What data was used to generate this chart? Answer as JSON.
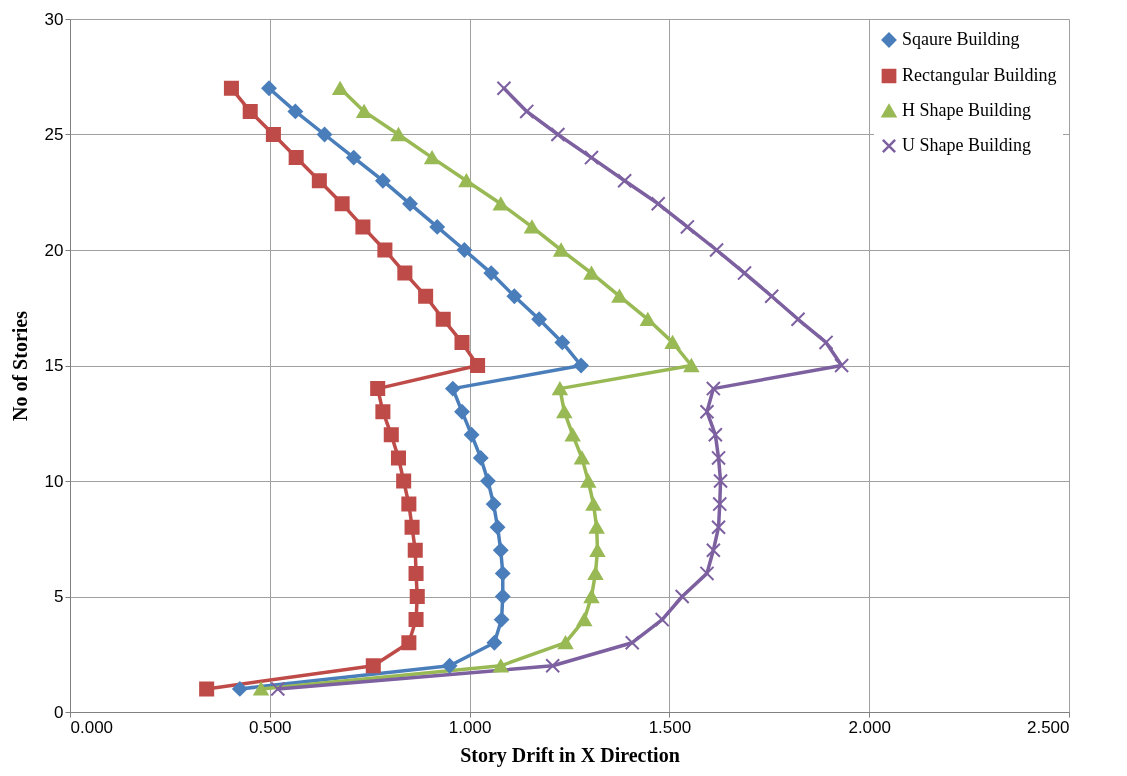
{
  "chart_data": {
    "type": "line",
    "xlabel": "Story Drift in X Direction",
    "ylabel": "No of Stories",
    "xlim": [
      0,
      2.5
    ],
    "xticks": [
      {
        "value": 0,
        "label": "0.000"
      },
      {
        "value": 0.5,
        "label": "0.500"
      },
      {
        "value": 1,
        "label": "1.000"
      },
      {
        "value": 1.5,
        "label": "1.500"
      },
      {
        "value": 2,
        "label": "2.000"
      },
      {
        "value": 2.5,
        "label": "2.500"
      }
    ],
    "ylim": [
      0,
      30
    ],
    "yticks": [
      0,
      5,
      10,
      15,
      20,
      25,
      30
    ],
    "grid": true,
    "legend": "top right",
    "line_style": "solid",
    "series": [
      {
        "name": "Sqaure Building",
        "color": "#4a7ebb",
        "marker": "diamond",
        "x": [
          0.425,
          0.95,
          1.062,
          1.08,
          1.083,
          1.083,
          1.078,
          1.07,
          1.06,
          1.046,
          1.028,
          1.005,
          0.981,
          0.958,
          1.279,
          1.232,
          1.174,
          1.112,
          1.054,
          0.987,
          0.919,
          0.851,
          0.783,
          0.71,
          0.637,
          0.564,
          0.498
        ],
        "values": [
          1,
          2,
          3,
          4,
          5,
          6,
          7,
          8,
          9,
          10,
          11,
          12,
          13,
          14,
          15,
          16,
          17,
          18,
          19,
          20,
          21,
          22,
          23,
          24,
          25,
          26,
          27
        ]
      },
      {
        "name": "Rectangular Building",
        "color": "#be4b48",
        "marker": "square",
        "x": [
          0.342,
          0.759,
          0.848,
          0.866,
          0.869,
          0.866,
          0.864,
          0.856,
          0.848,
          0.835,
          0.822,
          0.804,
          0.783,
          0.77,
          1.02,
          0.981,
          0.934,
          0.89,
          0.838,
          0.788,
          0.733,
          0.681,
          0.624,
          0.566,
          0.509,
          0.451,
          0.404
        ],
        "values": [
          1,
          2,
          3,
          4,
          5,
          6,
          7,
          8,
          9,
          10,
          11,
          12,
          13,
          14,
          15,
          16,
          17,
          18,
          19,
          20,
          21,
          22,
          23,
          24,
          25,
          26,
          27
        ]
      },
      {
        "name": "H Shape Building",
        "color": "#98b954",
        "marker": "triangle",
        "x": [
          0.478,
          1.078,
          1.24,
          1.287,
          1.305,
          1.315,
          1.32,
          1.318,
          1.31,
          1.297,
          1.281,
          1.258,
          1.237,
          1.226,
          1.555,
          1.508,
          1.446,
          1.375,
          1.305,
          1.229,
          1.156,
          1.078,
          0.992,
          0.906,
          0.822,
          0.736,
          0.676
        ],
        "values": [
          1,
          2,
          3,
          4,
          5,
          6,
          7,
          8,
          9,
          10,
          11,
          12,
          13,
          14,
          15,
          16,
          17,
          18,
          19,
          20,
          21,
          22,
          23,
          24,
          25,
          26,
          27
        ]
      },
      {
        "name": "U Shape Building",
        "color": "#7d60a0",
        "marker": "cross",
        "x": [
          0.52,
          1.208,
          1.407,
          1.482,
          1.532,
          1.594,
          1.61,
          1.623,
          1.626,
          1.628,
          1.623,
          1.615,
          1.594,
          1.61,
          1.931,
          1.892,
          1.822,
          1.756,
          1.688,
          1.618,
          1.545,
          1.472,
          1.388,
          1.305,
          1.221,
          1.143,
          1.086
        ],
        "values": [
          1,
          2,
          3,
          4,
          5,
          6,
          7,
          8,
          9,
          10,
          11,
          12,
          13,
          14,
          15,
          16,
          17,
          18,
          19,
          20,
          21,
          22,
          23,
          24,
          25,
          26,
          27
        ]
      }
    ]
  }
}
